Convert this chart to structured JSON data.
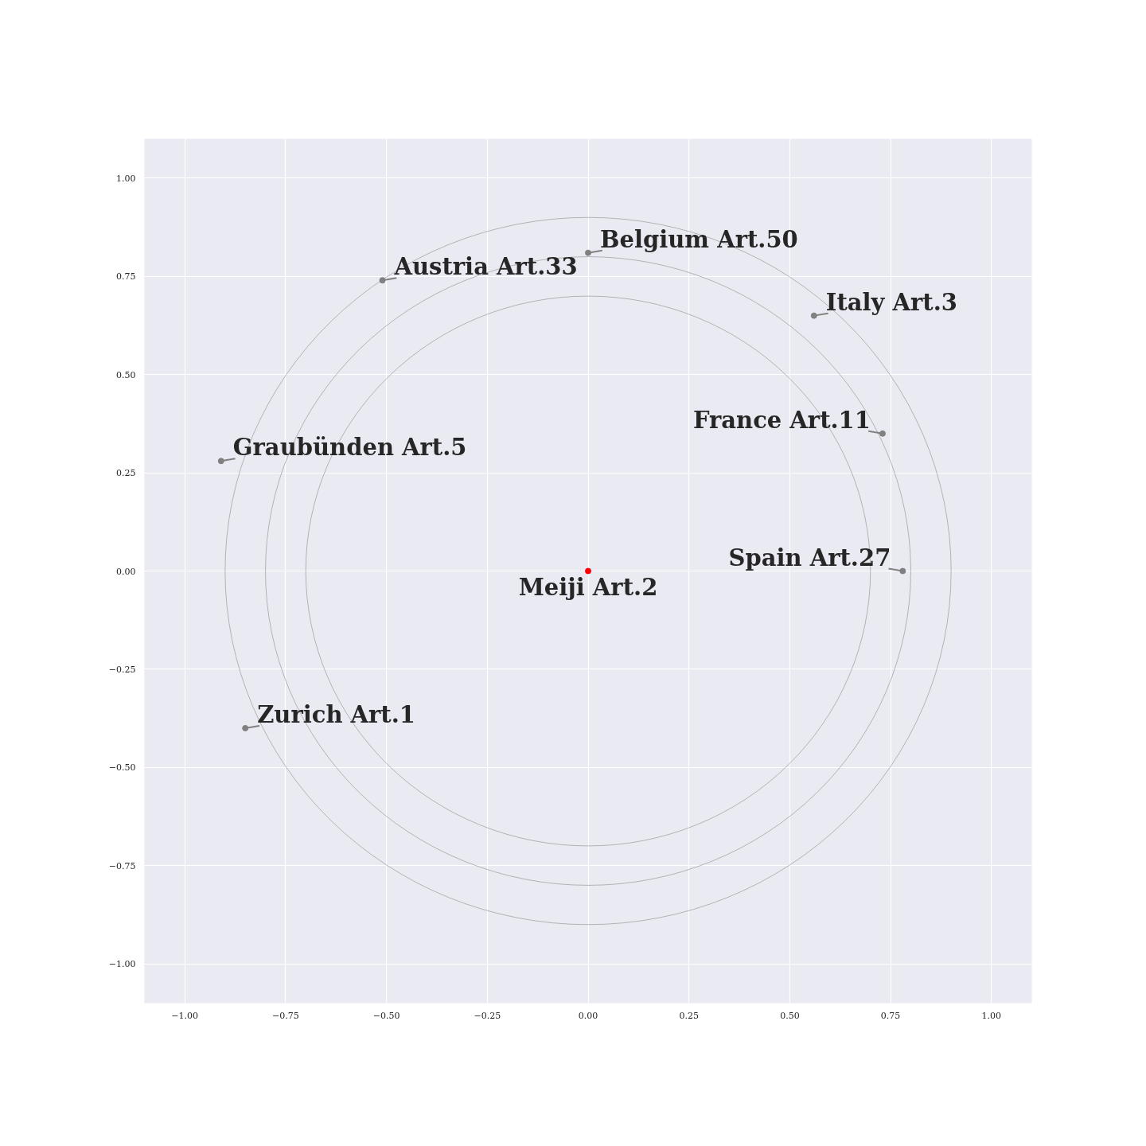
{
  "chart_data": {
    "type": "scatter",
    "xlim": [
      -1.1,
      1.1
    ],
    "ylim": [
      -1.1,
      1.1
    ],
    "xticks": [
      {
        "value": -1,
        "label": "−1.00"
      },
      {
        "value": -0.75,
        "label": "−0.75"
      },
      {
        "value": -0.5,
        "label": "−0.50"
      },
      {
        "value": -0.25,
        "label": "−0.25"
      },
      {
        "value": 0,
        "label": "0.00"
      },
      {
        "value": 0.25,
        "label": "0.25"
      },
      {
        "value": 0.5,
        "label": "0.50"
      },
      {
        "value": 0.75,
        "label": "0.75"
      },
      {
        "value": 1,
        "label": "1.00"
      }
    ],
    "yticks": [
      {
        "value": -1,
        "label": "−1.00"
      },
      {
        "value": -0.75,
        "label": "−0.75"
      },
      {
        "value": -0.5,
        "label": "−0.50"
      },
      {
        "value": -0.25,
        "label": "−0.25"
      },
      {
        "value": 0,
        "label": "0.00"
      },
      {
        "value": 0.25,
        "label": "0.25"
      },
      {
        "value": 0.5,
        "label": "0.50"
      },
      {
        "value": 0.75,
        "label": "0.75"
      },
      {
        "value": 1,
        "label": "1.00"
      }
    ],
    "grid": true,
    "marker": "circle",
    "series": [
      {
        "x": [
          0,
          0.78,
          0.73,
          0.56,
          0.0,
          -0.51,
          -0.91,
          -0.85
        ],
        "values": [
          0,
          0,
          0.35,
          0.65,
          0.81,
          0.74,
          0.28,
          -0.4
        ],
        "colors": [
          "#ff0000",
          "#808080",
          "#808080",
          "#808080",
          "#808080",
          "#808080",
          "#808080",
          "#808080"
        ]
      }
    ],
    "annotations": [
      {
        "text": "Meiji Art.2",
        "x": 0,
        "y": 0
      },
      {
        "text": "Spain Art.27",
        "x": 0.78,
        "y": 0
      },
      {
        "text": "France Art.11",
        "x": 0.73,
        "y": 0.35
      },
      {
        "text": "Italy Art.3",
        "x": 0.56,
        "y": 0.65
      },
      {
        "text": "Belgium Art.50",
        "x": 0.0,
        "y": 0.81
      },
      {
        "text": "Austria Art.33",
        "x": -0.51,
        "y": 0.74
      },
      {
        "text": "Graubünden Art.5",
        "x": -0.91,
        "y": 0.28
      },
      {
        "text": "Zurich Art.1",
        "x": -0.85,
        "y": -0.4
      }
    ]
  }
}
